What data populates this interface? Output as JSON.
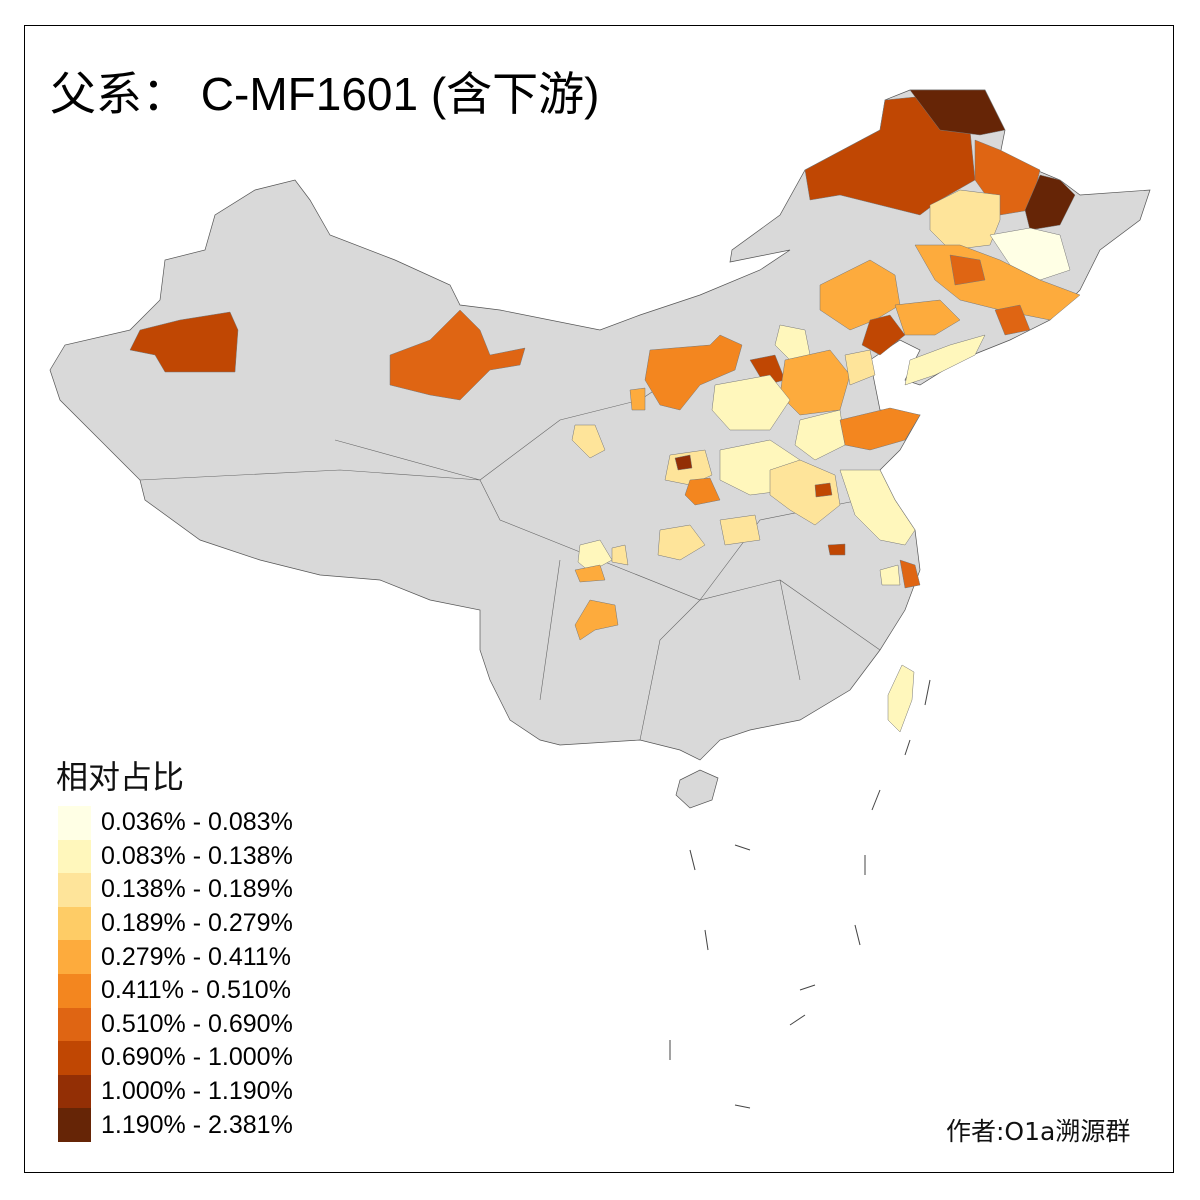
{
  "title": "父系： C-MF1601 (含下游)",
  "legend": {
    "title": "相对占比",
    "items": [
      {
        "label": "0.036% - 0.083%",
        "color": "#FFFFE5"
      },
      {
        "label": "0.083% - 0.138%",
        "color": "#FFF7BC"
      },
      {
        "label": "0.138% - 0.189%",
        "color": "#FEE49A"
      },
      {
        "label": "0.189% - 0.279%",
        "color": "#FECC66"
      },
      {
        "label": "0.279% - 0.411%",
        "color": "#FDAB3D"
      },
      {
        "label": "0.411% - 0.510%",
        "color": "#F3861F"
      },
      {
        "label": "0.510% - 0.690%",
        "color": "#DF6513"
      },
      {
        "label": "0.690% - 1.000%",
        "color": "#C04703"
      },
      {
        "label": "1.000% - 1.190%",
        "color": "#932F05"
      },
      {
        "label": "1.190% - 2.381%",
        "color": "#662506"
      }
    ]
  },
  "no_data_color": "#D9D9D9",
  "credit": "作者:O1a溯源群"
}
